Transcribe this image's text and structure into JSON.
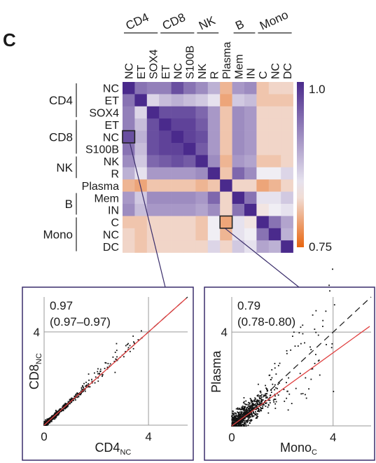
{
  "panel_label": "C",
  "chart_data": [
    {
      "type": "heatmap",
      "rows": [
        "NC",
        "ET",
        "SOX4",
        "ET",
        "NC",
        "S100B",
        "NK",
        "R",
        "Plasma",
        "Mem",
        "IN",
        "C",
        "NC",
        "DC"
      ],
      "columns": [
        "NC",
        "ET",
        "SOX4",
        "ET",
        "NC",
        "S100B",
        "NK",
        "R",
        "Plasma",
        "Mem",
        "IN",
        "C",
        "NC",
        "DC"
      ],
      "groups": [
        {
          "name": "CD4",
          "start": 0,
          "end": 2
        },
        {
          "name": "CD8",
          "start": 3,
          "end": 5
        },
        {
          "name": "NK",
          "start": 6,
          "end": 7
        },
        {
          "name": "",
          "start": 8,
          "end": 8
        },
        {
          "name": "B",
          "start": 9,
          "end": 10
        },
        {
          "name": "Mono",
          "start": 11,
          "end": 13
        }
      ],
      "values": [
        [
          1.0,
          0.94,
          0.93,
          0.93,
          0.97,
          0.94,
          0.92,
          0.89,
          0.8,
          0.91,
          0.92,
          0.81,
          0.82,
          0.82
        ],
        [
          0.94,
          1.0,
          0.86,
          0.88,
          0.89,
          0.88,
          0.87,
          0.85,
          0.79,
          0.87,
          0.88,
          0.81,
          0.81,
          0.81
        ],
        [
          0.93,
          0.86,
          1.0,
          0.97,
          0.97,
          0.97,
          0.95,
          0.91,
          0.81,
          0.92,
          0.91,
          0.82,
          0.82,
          0.82
        ],
        [
          0.93,
          0.88,
          0.97,
          1.0,
          0.98,
          0.98,
          0.96,
          0.91,
          0.81,
          0.92,
          0.91,
          0.82,
          0.82,
          0.82
        ],
        [
          0.97,
          0.89,
          0.97,
          0.98,
          1.0,
          0.98,
          0.97,
          0.91,
          0.81,
          0.92,
          0.91,
          0.82,
          0.82,
          0.82
        ],
        [
          0.94,
          0.88,
          0.97,
          0.98,
          0.98,
          1.0,
          0.96,
          0.91,
          0.81,
          0.92,
          0.91,
          0.82,
          0.82,
          0.82
        ],
        [
          0.92,
          0.87,
          0.95,
          0.96,
          0.97,
          0.96,
          1.0,
          0.92,
          0.8,
          0.91,
          0.9,
          0.81,
          0.81,
          0.82
        ],
        [
          0.89,
          0.85,
          0.91,
          0.91,
          0.91,
          0.91,
          0.92,
          1.0,
          0.81,
          0.95,
          0.92,
          0.84,
          0.84,
          0.86
        ],
        [
          0.8,
          0.79,
          0.81,
          0.81,
          0.81,
          0.81,
          0.8,
          0.81,
          1.0,
          0.82,
          0.82,
          0.79,
          0.8,
          0.82
        ],
        [
          0.91,
          0.87,
          0.92,
          0.92,
          0.92,
          0.92,
          0.91,
          0.95,
          0.82,
          1.0,
          0.94,
          0.85,
          0.85,
          0.87
        ],
        [
          0.92,
          0.88,
          0.91,
          0.91,
          0.91,
          0.91,
          0.9,
          0.92,
          0.82,
          0.94,
          1.0,
          0.83,
          0.84,
          0.85
        ],
        [
          0.81,
          0.81,
          0.82,
          0.82,
          0.82,
          0.82,
          0.81,
          0.84,
          0.79,
          0.85,
          0.83,
          1.0,
          0.94,
          0.9
        ],
        [
          0.82,
          0.81,
          0.82,
          0.82,
          0.82,
          0.82,
          0.81,
          0.84,
          0.8,
          0.85,
          0.84,
          0.94,
          1.0,
          0.89
        ],
        [
          0.82,
          0.81,
          0.82,
          0.82,
          0.82,
          0.82,
          0.82,
          0.86,
          0.82,
          0.87,
          0.85,
          0.9,
          0.89,
          1.0
        ]
      ],
      "colorbar": {
        "max_label": "1.0",
        "min_label": "0.75",
        "max": 1.0,
        "min": 0.75,
        "colors": {
          "high": "#4a2a8c",
          "mid": "#f3f1f6",
          "low": "#e8650f"
        }
      },
      "highlights": [
        {
          "row": 4,
          "col": 0
        },
        {
          "row": 11,
          "col": 8
        }
      ]
    },
    {
      "type": "scatter",
      "xlabel": "CD4",
      "xlabel_sub": "NC",
      "ylabel": "CD8",
      "ylabel_sub": "NC",
      "xlim": [
        0,
        5.5
      ],
      "ylim": [
        0,
        5.5
      ],
      "xticks": [
        "0",
        "4"
      ],
      "yticks": [
        "4"
      ],
      "annotation_line1": "0.97",
      "annotation_line2": "(0.97–0.97)",
      "fit_slope": 1.0,
      "identity_line": true,
      "fit_color": "#e04040"
    },
    {
      "type": "scatter",
      "xlabel": "Mono",
      "xlabel_sub": "C",
      "ylabel": "Plasma",
      "ylabel_sub": "",
      "xlim": [
        0,
        5.5
      ],
      "ylim": [
        0,
        5.5
      ],
      "xticks": [
        "0",
        "4"
      ],
      "yticks": [
        "4"
      ],
      "annotation_line1": "0.79",
      "annotation_line2": "(0.78-0.80)",
      "fit_slope": 0.78,
      "identity_line": true,
      "fit_color": "#e04040"
    }
  ]
}
